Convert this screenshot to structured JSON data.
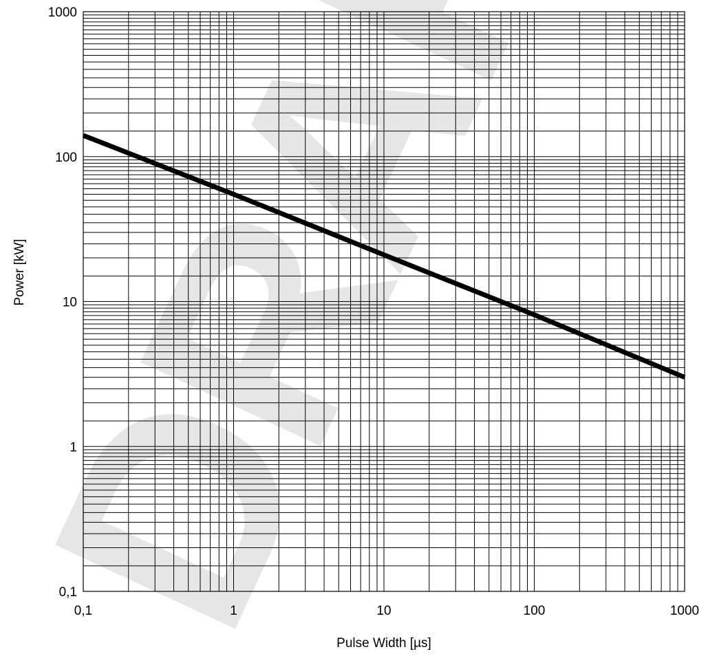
{
  "chart_data": {
    "type": "line",
    "title": "",
    "xlabel": "Pulse Width [µs]",
    "ylabel": "Power [kW]",
    "x_scale": "log",
    "y_scale": "log",
    "xlim": [
      0.1,
      1000
    ],
    "ylim": [
      0.1,
      1000
    ],
    "x_ticks": [
      0.1,
      1,
      10,
      100,
      1000
    ],
    "x_tick_labels": [
      "0,1",
      "1",
      "10",
      "100",
      "1000"
    ],
    "y_ticks": [
      0.1,
      1,
      10,
      100,
      1000
    ],
    "y_tick_labels": [
      "0,1",
      "1",
      "10",
      "100",
      "1000"
    ],
    "grid": true,
    "series": [
      {
        "x": [
          0.1,
          1,
          10,
          100,
          1000
        ],
        "y": [
          140,
          55,
          21,
          8.1,
          3.0
        ],
        "color": "#000000"
      }
    ],
    "watermark": "DRAFT"
  }
}
